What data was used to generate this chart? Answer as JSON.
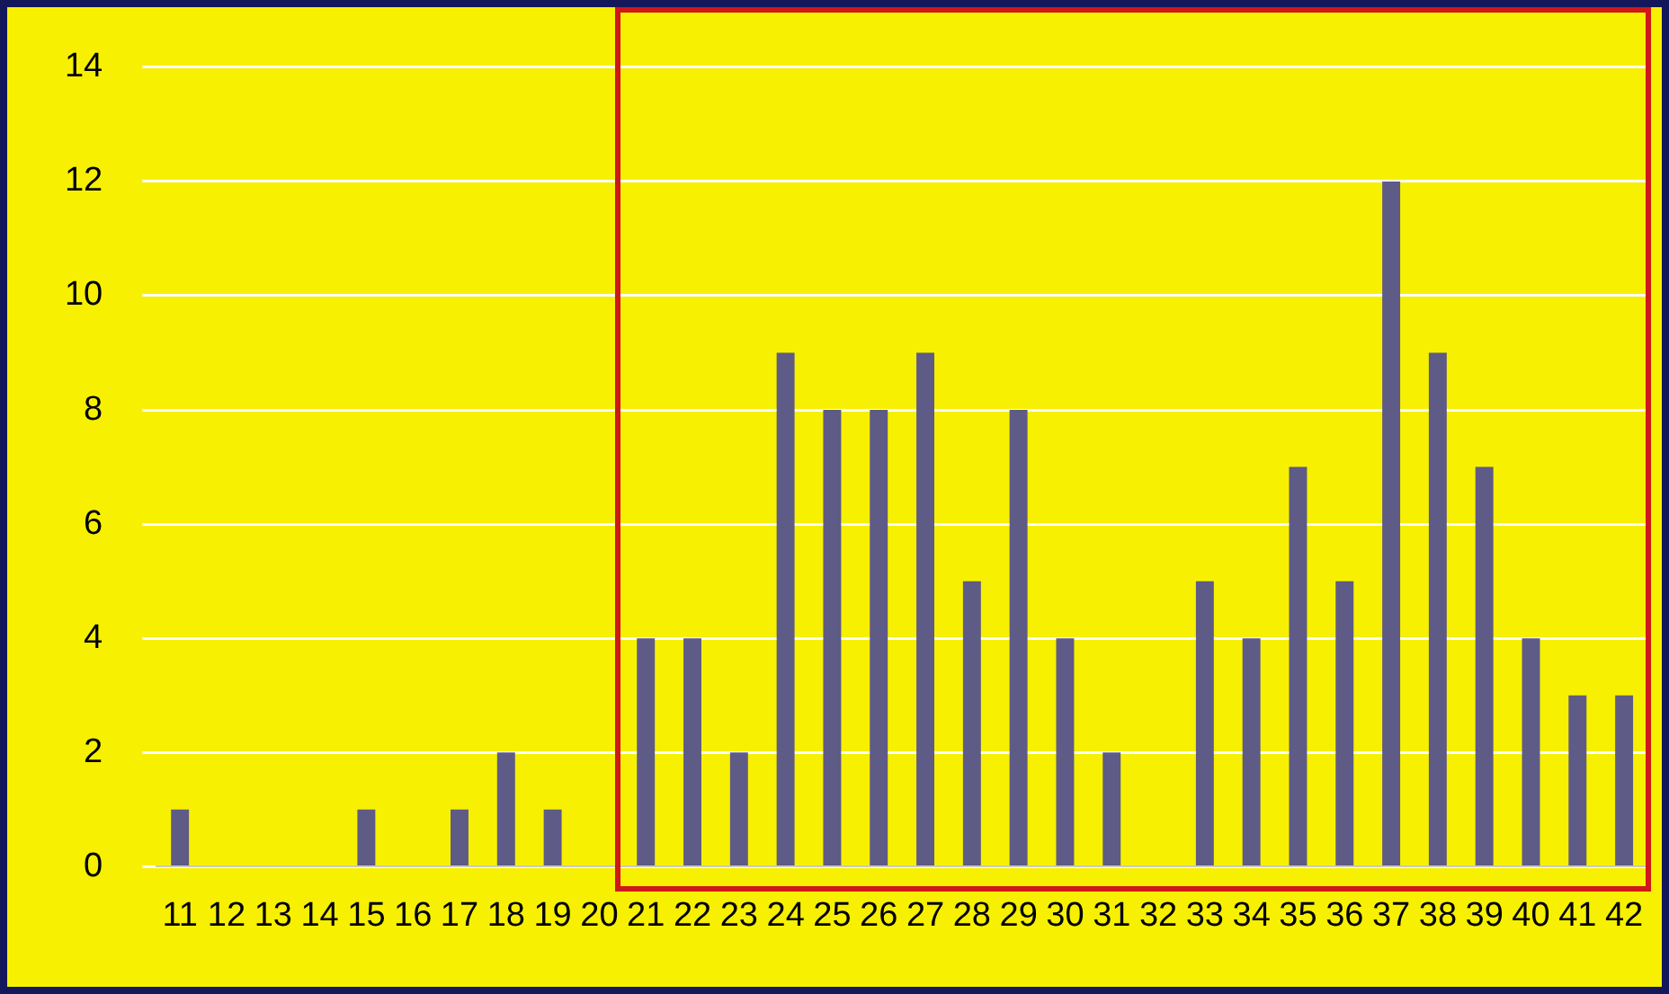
{
  "chart_data": {
    "type": "bar",
    "categories": [
      "11",
      "12",
      "13",
      "14",
      "15",
      "16",
      "17",
      "18",
      "19",
      "20",
      "21",
      "22",
      "23",
      "24",
      "25",
      "26",
      "27",
      "28",
      "29",
      "30",
      "31",
      "32",
      "33",
      "34",
      "35",
      "36",
      "37",
      "38",
      "39",
      "40",
      "41",
      "42"
    ],
    "series": [
      {
        "color": "#5e5b86",
        "values": [
          1,
          0,
          0,
          0,
          1,
          0,
          1,
          2,
          1,
          0,
          4,
          4,
          2,
          9,
          8,
          8,
          9,
          5,
          8,
          4,
          2,
          0,
          5,
          4,
          7,
          5,
          12,
          9,
          7,
          4,
          3,
          3
        ]
      }
    ],
    "ylim": [
      0,
      14
    ],
    "yticks": [
      0,
      2,
      4,
      6,
      8,
      10,
      12,
      14
    ],
    "grid": "y",
    "legend": false
  }
}
